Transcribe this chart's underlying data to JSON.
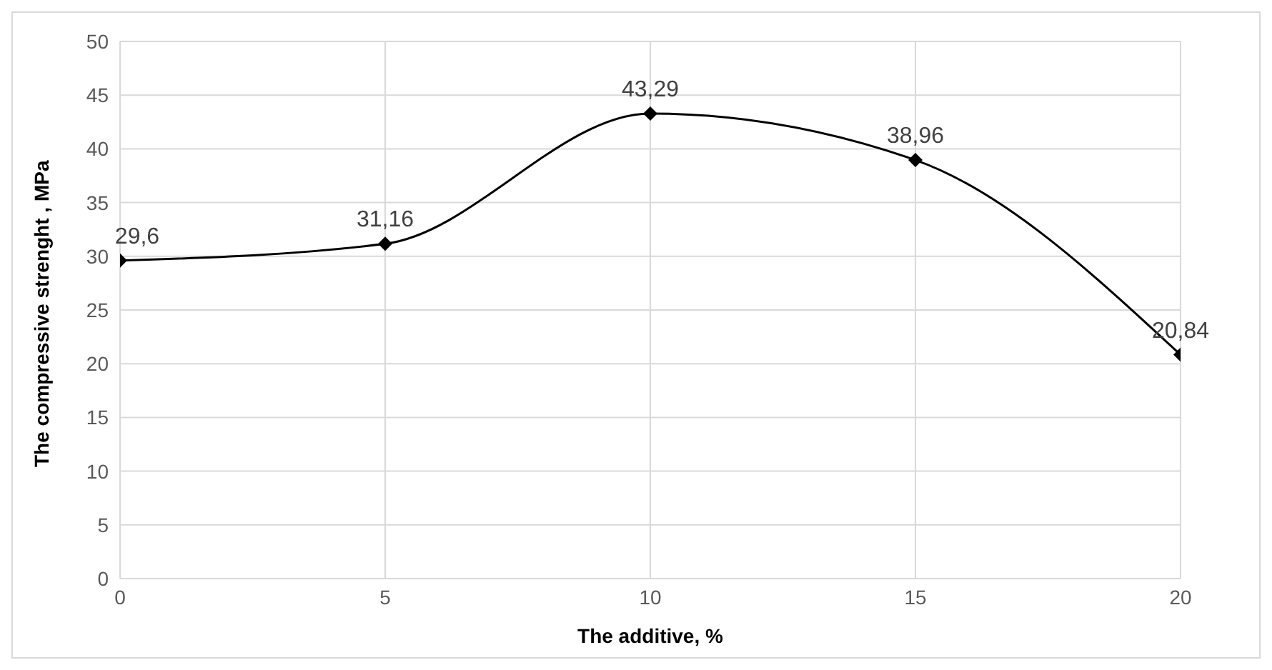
{
  "chart_data": {
    "type": "line",
    "xlabel": "The additive, %",
    "ylabel": "The compressive strenght , MPa",
    "x": [
      0,
      5,
      10,
      15,
      20
    ],
    "series": [
      {
        "color": "#000000",
        "values": [
          29.6,
          31.16,
          43.29,
          38.96,
          20.84
        ],
        "value_labels": [
          "29,6",
          "31,16",
          "43,29",
          "38,96",
          "20,84"
        ]
      }
    ],
    "xlim": [
      0,
      20
    ],
    "xticks": [
      0,
      5,
      10,
      15,
      20
    ],
    "ylim": [
      0,
      50
    ],
    "yticks": [
      0,
      5,
      10,
      15,
      20,
      25,
      30,
      35,
      40,
      45,
      50
    ],
    "grid": true,
    "marker": "diamond",
    "line_style": "solid",
    "legend": false
  }
}
